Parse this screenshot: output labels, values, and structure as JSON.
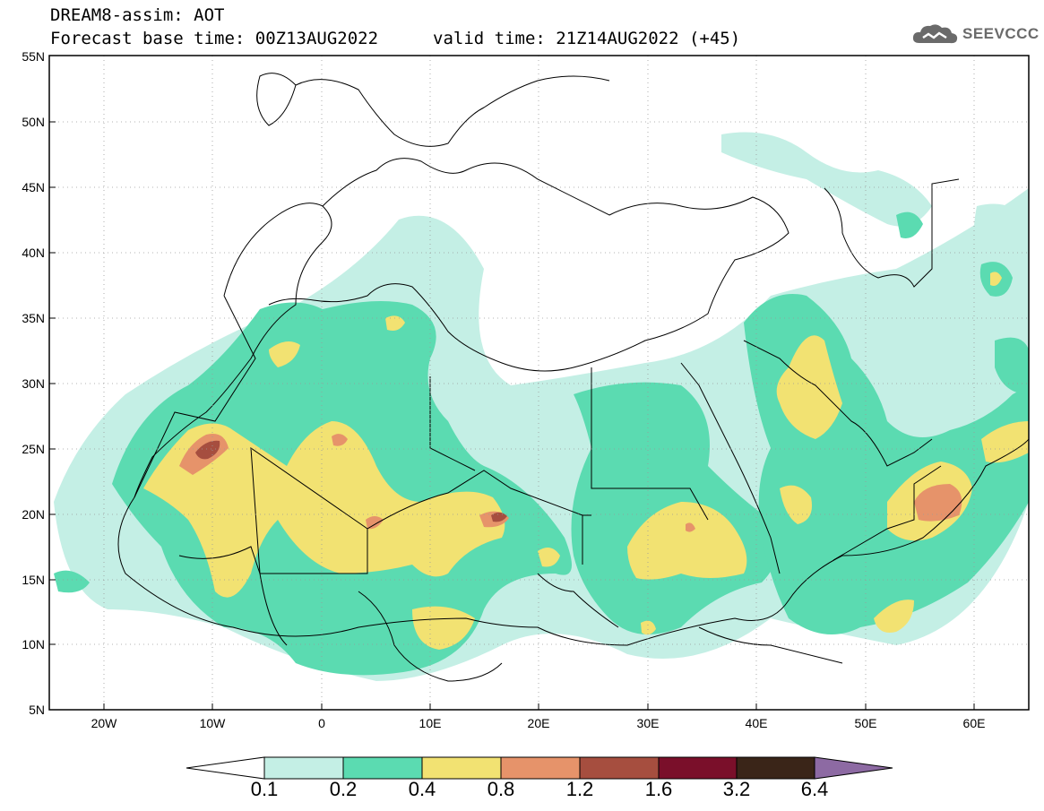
{
  "header": {
    "title_line1": "DREAM8-assim: AOT",
    "title_line2": "Forecast base time: 00Z13AUG2022",
    "valid_time": "valid time: 21Z14AUG2022 (+45)"
  },
  "logo": {
    "text": "SEEVCCC",
    "icon": "cloud-icon"
  },
  "map": {
    "lat_ticks": [
      "55N",
      "50N",
      "45N",
      "40N",
      "35N",
      "30N",
      "25N",
      "20N",
      "15N",
      "10N",
      "5N"
    ],
    "lon_ticks": [
      "20W",
      "10W",
      "0",
      "10E",
      "20E",
      "30E",
      "40E",
      "50E",
      "60E"
    ],
    "lon_range": [
      -25,
      65
    ],
    "lat_range": [
      5,
      55
    ]
  },
  "colorbar": {
    "labels": [
      "0.1",
      "0.2",
      "0.4",
      "0.8",
      "1.2",
      "1.6",
      "3.2",
      "6.4"
    ],
    "colors": [
      "#ffffff",
      "#c4efe5",
      "#5bdbb1",
      "#f2e272",
      "#e6936a",
      "#a64e3f",
      "#7a0f2a",
      "#3a2518",
      "#8d6aa3"
    ]
  }
}
